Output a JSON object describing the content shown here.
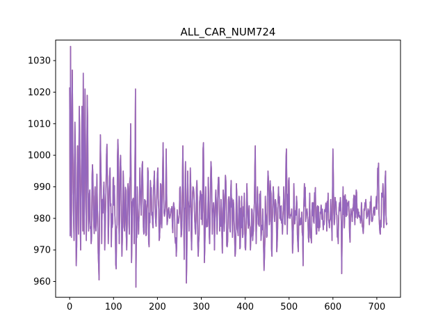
{
  "chart_data": {
    "type": "line",
    "title": "ALL_CAR_NUM724",
    "xlabel": "",
    "ylabel": "",
    "xlim": [
      -32,
      754
    ],
    "ylim": [
      955,
      1036.5
    ],
    "x_ticks": [
      0,
      100,
      200,
      300,
      400,
      500,
      600,
      700
    ],
    "y_ticks": [
      960,
      970,
      980,
      990,
      1000,
      1010,
      1020,
      1030
    ],
    "grid": false,
    "legend": "none",
    "colors": {
      "series": "#9467bd",
      "underlay": "#c0504d",
      "axis": "#000000"
    },
    "series": [
      {
        "x_start": 0,
        "x_end": 724,
        "count": 725,
        "min": 958.2,
        "max": 1034.5,
        "keypoints": [
          [
            0,
            1021.5
          ],
          [
            1,
            974.5
          ],
          [
            2,
            1034.5
          ],
          [
            4,
            974
          ],
          [
            6,
            1027
          ],
          [
            8,
            988
          ],
          [
            10,
            973
          ],
          [
            12,
            1010.5
          ],
          [
            15,
            965
          ],
          [
            18,
            1003
          ],
          [
            20,
            975
          ],
          [
            22,
            1015.5
          ],
          [
            25,
            970
          ],
          [
            28,
            1015.5
          ],
          [
            30,
            976
          ],
          [
            31,
            1026
          ],
          [
            33,
            975
          ],
          [
            35,
            1021
          ],
          [
            38,
            973
          ],
          [
            40,
            1019
          ],
          [
            43,
            976
          ],
          [
            46,
            989
          ],
          [
            49,
            972
          ],
          [
            52,
            997
          ],
          [
            55,
            978
          ],
          [
            58,
            990
          ],
          [
            60,
            976
          ],
          [
            62,
            994
          ],
          [
            65,
            969
          ],
          [
            67,
            960.5
          ],
          [
            70,
            1006.5
          ],
          [
            73,
            972
          ],
          [
            78,
            991.5
          ],
          [
            80,
            970
          ],
          [
            85,
            1003.5
          ],
          [
            88,
            972
          ],
          [
            92,
            996
          ],
          [
            95,
            971
          ],
          [
            100,
            993
          ],
          [
            103,
            981
          ],
          [
            106,
            964
          ],
          [
            110,
            1005
          ],
          [
            113,
            972
          ],
          [
            116,
            1000
          ],
          [
            119,
            968
          ],
          [
            122,
            995
          ],
          [
            125,
            976
          ],
          [
            128,
            989
          ],
          [
            130,
            970
          ],
          [
            133,
            991
          ],
          [
            136,
            975
          ],
          [
            139,
            1010
          ],
          [
            141,
            966
          ],
          [
            144,
            986
          ],
          [
            147,
            972
          ],
          [
            150,
            1021
          ],
          [
            151,
            958.2
          ],
          [
            154,
            990
          ],
          [
            157,
            975
          ],
          [
            160,
            996
          ],
          [
            163,
            981
          ],
          [
            166,
            998
          ],
          [
            169,
            975
          ],
          [
            172,
            985
          ],
          [
            175,
            975
          ],
          [
            178,
            996
          ],
          [
            181,
            971
          ],
          [
            184,
            992
          ],
          [
            187,
            981
          ],
          [
            190,
            977
          ],
          [
            193,
            995
          ],
          [
            196,
            979
          ],
          [
            198,
            983
          ],
          [
            201,
            996
          ],
          [
            204,
            973
          ],
          [
            207,
            991
          ],
          [
            210,
            977
          ],
          [
            213,
            1004
          ],
          [
            215,
            982
          ],
          [
            218,
            983
          ],
          [
            220,
            1002
          ],
          [
            222,
            978
          ],
          [
            225,
            983
          ],
          [
            228,
            980
          ],
          [
            231,
            983
          ],
          [
            234,
            978
          ],
          [
            237,
            985
          ],
          [
            240,
            974
          ],
          [
            243,
            968
          ],
          [
            246,
            980
          ],
          [
            249,
            980
          ],
          [
            252,
            990
          ],
          [
            255,
            975
          ],
          [
            258,
            1003
          ],
          [
            261,
            967
          ],
          [
            264,
            998
          ],
          [
            266,
            959.5
          ],
          [
            269,
            995
          ],
          [
            272,
            976
          ],
          [
            275,
            996
          ],
          [
            278,
            970
          ],
          [
            281,
            990
          ],
          [
            284,
            985
          ],
          [
            287,
            975
          ],
          [
            290,
            992
          ],
          [
            293,
            968
          ],
          [
            296,
            985
          ],
          [
            299,
            988
          ],
          [
            302,
            978
          ],
          [
            305,
            1004
          ],
          [
            307,
            966
          ],
          [
            310,
            990
          ],
          [
            313,
            978
          ],
          [
            316,
            993
          ],
          [
            319,
            972
          ],
          [
            322,
            998
          ],
          [
            325,
            975
          ],
          [
            328,
            985
          ],
          [
            330,
            970
          ],
          [
            333,
            989
          ],
          [
            336,
            975
          ],
          [
            339,
            993
          ],
          [
            342,
            976
          ],
          [
            345,
            986
          ],
          [
            348,
            969
          ],
          [
            350,
            989
          ],
          [
            353,
            979
          ],
          [
            356,
            992
          ],
          [
            359,
            971
          ],
          [
            362,
            986
          ],
          [
            365,
            977
          ],
          [
            368,
            992
          ],
          [
            371,
            974
          ],
          [
            374,
            984
          ],
          [
            377,
            968
          ],
          [
            380,
            991
          ],
          [
            383,
            976
          ],
          [
            386,
            987
          ],
          [
            389,
            971
          ],
          [
            392,
            987
          ],
          [
            395,
            975
          ],
          [
            398,
            988
          ],
          [
            401,
            970
          ],
          [
            404,
            991
          ],
          [
            406,
            979
          ],
          [
            409,
            984
          ],
          [
            412,
            970
          ],
          [
            415,
            983
          ],
          [
            418,
            975
          ],
          [
            421,
            985
          ],
          [
            423,
            1003
          ],
          [
            425,
            972
          ],
          [
            428,
            990
          ],
          [
            431,
            978
          ],
          [
            434,
            986
          ],
          [
            437,
            975
          ],
          [
            440,
            983
          ],
          [
            443,
            963.5
          ],
          [
            446,
            987
          ],
          [
            449,
            974
          ],
          [
            452,
            995
          ],
          [
            455,
            978
          ],
          [
            458,
            989
          ],
          [
            461,
            968
          ],
          [
            464,
            990
          ],
          [
            467,
            979
          ],
          [
            470,
            985
          ],
          [
            473,
            972
          ],
          [
            476,
            990
          ],
          [
            479,
            980
          ],
          [
            482,
            984
          ],
          [
            485,
            975
          ],
          [
            488,
            990
          ],
          [
            491,
            978
          ],
          [
            494,
            1002
          ],
          [
            496,
            975
          ],
          [
            499,
            992
          ],
          [
            502,
            980
          ],
          [
            505,
            981
          ],
          [
            508,
            969
          ],
          [
            511,
            991
          ],
          [
            514,
            980
          ],
          [
            517,
            987
          ],
          [
            520,
            972
          ],
          [
            523,
            983
          ],
          [
            526,
            978
          ],
          [
            529,
            982
          ],
          [
            532,
            965
          ],
          [
            535,
            991
          ],
          [
            538,
            979
          ],
          [
            541,
            983
          ],
          [
            544,
            974
          ],
          [
            547,
            988
          ],
          [
            550,
            974
          ],
          [
            553,
            985
          ],
          [
            556,
            979
          ],
          [
            559,
            987
          ],
          [
            562,
            975
          ],
          [
            565,
            984
          ],
          [
            568,
            976
          ],
          [
            571,
            982
          ],
          [
            574,
            983
          ],
          [
            577,
            979
          ],
          [
            580,
            978
          ],
          [
            583,
            983
          ],
          [
            586,
            976
          ],
          [
            589,
            988
          ],
          [
            592,
            977
          ],
          [
            595,
            986
          ],
          [
            598,
            973
          ],
          [
            600,
            1002
          ],
          [
            603,
            978
          ],
          [
            606,
            985
          ],
          [
            609,
            981
          ],
          [
            612,
            972
          ],
          [
            615,
            985
          ],
          [
            618,
            984
          ],
          [
            620,
            962.5
          ],
          [
            623,
            990
          ],
          [
            626,
            977
          ],
          [
            629,
            985
          ],
          [
            632,
            981
          ],
          [
            635,
            985
          ],
          [
            638,
            975
          ],
          [
            641,
            983
          ],
          [
            644,
            979
          ],
          [
            647,
            986
          ],
          [
            650,
            978
          ],
          [
            653,
            989
          ],
          [
            656,
            980
          ],
          [
            659,
            982
          ],
          [
            662,
            980
          ],
          [
            665,
            985
          ],
          [
            668,
            977
          ],
          [
            671,
            983
          ],
          [
            674,
            984
          ],
          [
            677,
            980
          ],
          [
            680,
            983
          ],
          [
            683,
            978
          ],
          [
            686,
            985
          ],
          [
            689,
            979
          ],
          [
            692,
            982
          ],
          [
            695,
            981
          ],
          [
            698,
            984
          ],
          [
            701,
            986
          ],
          [
            704,
            997.5
          ],
          [
            706,
            978
          ],
          [
            708,
            975
          ],
          [
            711,
            988
          ],
          [
            714,
            991
          ],
          [
            717,
            980
          ],
          [
            720,
            995
          ],
          [
            722,
            978
          ],
          [
            724,
            978.5
          ]
        ]
      }
    ]
  }
}
